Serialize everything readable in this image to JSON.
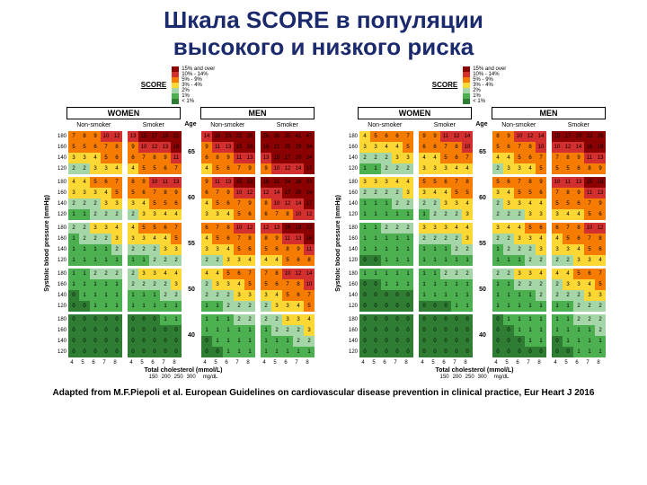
{
  "title_line1": "Шкала SCORE в популяции",
  "title_line2": "высокого и низкого риска",
  "attribution": "Adapted from M.F.Piepoli et al. European Guidelines on cardiovascular disease prevention in clinical practice, Eur Heart J 2016",
  "legend_title": "SCORE",
  "legend_items": [
    {
      "color": "#8b0000",
      "label": "15% and over"
    },
    {
      "color": "#d32f2f",
      "label": "10% - 14%"
    },
    {
      "color": "#f57c00",
      "label": "5% - 9%"
    },
    {
      "color": "#fdd835",
      "label": "3% - 4%"
    },
    {
      "color": "#a5d6a7",
      "label": "2%"
    },
    {
      "color": "#4caf50",
      "label": "1%"
    },
    {
      "color": "#2e7d32",
      "label": "< 1%"
    }
  ],
  "colors": {
    "darkred": "#8b0000",
    "red": "#d32f2f",
    "orange": "#f57c00",
    "yellow": "#fdd835",
    "lgreen": "#a5d6a7",
    "green": "#4caf50",
    "dgreen": "#2e7d32"
  },
  "gender_headers": [
    "WOMEN",
    "MEN"
  ],
  "smoke_headers": [
    "Non-smoker",
    "Smoker",
    "Non-smoker",
    "Smoker"
  ],
  "age_label": "Age",
  "y_axis": "Systolic blood pressure (mmHg)",
  "x_axis": "Total cholesterol (mmol/L)",
  "x_ticks": [
    "4",
    "5",
    "6",
    "7",
    "8"
  ],
  "x_ticks_mg": [
    "150",
    "200",
    "250",
    "300"
  ],
  "x_unit_mg": "mg/dL",
  "y_ticks": [
    "180",
    "160",
    "140",
    "120"
  ],
  "ages": [
    "65",
    "60",
    "55",
    "50",
    "40"
  ],
  "high_risk": {
    "65": {
      "wns": [
        [
          7,
          8,
          9,
          10,
          12
        ],
        [
          5,
          5,
          6,
          7,
          8
        ],
        [
          3,
          3,
          4,
          5,
          6
        ],
        [
          2,
          2,
          3,
          3,
          4
        ]
      ],
      "ws": [
        [
          13,
          15,
          17,
          19,
          22
        ],
        [
          9,
          10,
          12,
          13,
          16
        ],
        [
          6,
          7,
          8,
          9,
          11
        ],
        [
          4,
          5,
          5,
          6,
          7
        ]
      ],
      "mns": [
        [
          14,
          16,
          19,
          22,
          26
        ],
        [
          9,
          11,
          13,
          15,
          16
        ],
        [
          6,
          8,
          9,
          11,
          13
        ],
        [
          4,
          5,
          6,
          7,
          9
        ]
      ],
      "ms": [
        [
          26,
          30,
          35,
          41,
          47
        ],
        [
          18,
          21,
          25,
          29,
          34
        ],
        [
          13,
          15,
          17,
          20,
          24
        ],
        [
          9,
          10,
          12,
          14,
          17
        ]
      ]
    },
    "60": {
      "wns": [
        [
          4,
          4,
          5,
          6,
          7
        ],
        [
          3,
          3,
          3,
          4,
          5
        ],
        [
          2,
          2,
          2,
          3,
          3
        ],
        [
          1,
          1,
          2,
          2,
          2
        ]
      ],
      "ws": [
        [
          8,
          9,
          10,
          11,
          13
        ],
        [
          5,
          6,
          7,
          8,
          9
        ],
        [
          3,
          4,
          5,
          5,
          6
        ],
        [
          2,
          3,
          3,
          4,
          4
        ]
      ],
      "mns": [
        [
          9,
          11,
          13,
          15,
          18
        ],
        [
          6,
          7,
          9,
          10,
          12
        ],
        [
          4,
          5,
          6,
          7,
          9
        ],
        [
          3,
          3,
          4,
          5,
          6
        ]
      ],
      "ms": [
        [
          18,
          21,
          24,
          28,
          33
        ],
        [
          12,
          14,
          17,
          20,
          24
        ],
        [
          8,
          10,
          12,
          14,
          17
        ],
        [
          6,
          7,
          8,
          10,
          12
        ]
      ]
    },
    "55": {
      "wns": [
        [
          2,
          2,
          3,
          3,
          4
        ],
        [
          1,
          2,
          2,
          2,
          3
        ],
        [
          1,
          1,
          1,
          1,
          2
        ],
        [
          1,
          1,
          1,
          1,
          1
        ]
      ],
      "ws": [
        [
          4,
          5,
          5,
          6,
          7
        ],
        [
          3,
          3,
          4,
          4,
          5
        ],
        [
          2,
          2,
          2,
          3,
          3
        ],
        [
          1,
          1,
          2,
          2,
          2
        ]
      ],
      "mns": [
        [
          6,
          7,
          8,
          10,
          12
        ],
        [
          4,
          5,
          6,
          7,
          8
        ],
        [
          3,
          3,
          4,
          5,
          6
        ],
        [
          2,
          2,
          3,
          3,
          4
        ]
      ],
      "ms": [
        [
          12,
          13,
          16,
          19,
          22
        ],
        [
          8,
          9,
          11,
          13,
          16
        ],
        [
          5,
          6,
          8,
          9,
          11
        ],
        [
          4,
          4,
          5,
          6,
          8
        ]
      ]
    },
    "50": {
      "wns": [
        [
          1,
          1,
          2,
          2,
          2
        ],
        [
          1,
          1,
          1,
          1,
          1
        ],
        [
          0,
          1,
          1,
          1,
          1
        ],
        [
          0,
          0,
          1,
          1,
          1
        ]
      ],
      "ws": [
        [
          2,
          3,
          3,
          4,
          4
        ],
        [
          2,
          2,
          2,
          2,
          3
        ],
        [
          1,
          1,
          1,
          2,
          2
        ],
        [
          1,
          1,
          1,
          1,
          1
        ]
      ],
      "mns": [
        [
          4,
          4,
          5,
          6,
          7
        ],
        [
          2,
          3,
          3,
          4,
          5
        ],
        [
          2,
          2,
          2,
          3,
          3
        ],
        [
          1,
          1,
          2,
          2,
          2
        ]
      ],
      "ms": [
        [
          7,
          8,
          10,
          12,
          14
        ],
        [
          5,
          6,
          7,
          8,
          10
        ],
        [
          3,
          4,
          5,
          6,
          7
        ],
        [
          2,
          3,
          3,
          4,
          5
        ]
      ]
    },
    "40": {
      "wns": [
        [
          0,
          0,
          0,
          0,
          0
        ],
        [
          0,
          0,
          0,
          0,
          0
        ],
        [
          0,
          0,
          0,
          0,
          0
        ],
        [
          0,
          0,
          0,
          0,
          0
        ]
      ],
      "ws": [
        [
          0,
          0,
          0,
          1,
          1
        ],
        [
          0,
          0,
          0,
          0,
          0
        ],
        [
          0,
          0,
          0,
          0,
          0
        ],
        [
          0,
          0,
          0,
          0,
          0
        ]
      ],
      "mns": [
        [
          1,
          1,
          1,
          2,
          2
        ],
        [
          1,
          1,
          1,
          1,
          1
        ],
        [
          0,
          1,
          1,
          1,
          1
        ],
        [
          0,
          0,
          1,
          1,
          1
        ]
      ],
      "ms": [
        [
          2,
          2,
          3,
          3,
          4
        ],
        [
          1,
          2,
          2,
          2,
          3
        ],
        [
          1,
          1,
          1,
          2,
          2
        ],
        [
          1,
          1,
          1,
          1,
          1
        ]
      ]
    }
  },
  "low_risk": {
    "65": {
      "wns": [
        [
          4,
          5,
          6,
          6,
          7
        ],
        [
          3,
          3,
          4,
          4,
          5
        ],
        [
          2,
          2,
          2,
          3,
          3
        ],
        [
          1,
          1,
          2,
          2,
          2
        ]
      ],
      "ws": [
        [
          9,
          9,
          11,
          12,
          14
        ],
        [
          6,
          6,
          7,
          8,
          10
        ],
        [
          4,
          4,
          5,
          6,
          7
        ],
        [
          3,
          3,
          3,
          4,
          4
        ]
      ],
      "mns": [
        [
          8,
          9,
          10,
          12,
          14
        ],
        [
          5,
          6,
          7,
          8,
          10
        ],
        [
          4,
          4,
          5,
          6,
          7
        ],
        [
          2,
          3,
          3,
          4,
          5
        ]
      ],
      "ms": [
        [
          15,
          17,
          20,
          23,
          26
        ],
        [
          10,
          12,
          14,
          16,
          19
        ],
        [
          7,
          8,
          9,
          11,
          13
        ],
        [
          5,
          5,
          6,
          8,
          9
        ]
      ]
    },
    "60": {
      "wns": [
        [
          3,
          3,
          3,
          4,
          4
        ],
        [
          2,
          2,
          2,
          2,
          3
        ],
        [
          1,
          1,
          1,
          2,
          2
        ],
        [
          1,
          1,
          1,
          1,
          1
        ]
      ],
      "ws": [
        [
          5,
          5,
          6,
          7,
          8
        ],
        [
          3,
          4,
          4,
          5,
          5
        ],
        [
          2,
          2,
          3,
          3,
          4
        ],
        [
          1,
          2,
          2,
          2,
          3
        ]
      ],
      "mns": [
        [
          5,
          6,
          7,
          8,
          9
        ],
        [
          3,
          4,
          5,
          5,
          6
        ],
        [
          2,
          3,
          3,
          4,
          4
        ],
        [
          2,
          2,
          2,
          3,
          3
        ]
      ],
      "ms": [
        [
          10,
          11,
          13,
          15,
          18
        ],
        [
          7,
          8,
          9,
          11,
          13
        ],
        [
          5,
          5,
          6,
          7,
          9
        ],
        [
          3,
          4,
          4,
          5,
          6
        ]
      ]
    },
    "55": {
      "wns": [
        [
          1,
          1,
          2,
          2,
          2
        ],
        [
          1,
          1,
          1,
          1,
          1
        ],
        [
          1,
          1,
          1,
          1,
          1
        ],
        [
          0,
          0,
          1,
          1,
          1
        ]
      ],
      "ws": [
        [
          3,
          3,
          3,
          4,
          4
        ],
        [
          2,
          2,
          2,
          2,
          3
        ],
        [
          1,
          1,
          1,
          2,
          2
        ],
        [
          1,
          1,
          1,
          1,
          1
        ]
      ],
      "mns": [
        [
          3,
          4,
          4,
          5,
          6
        ],
        [
          2,
          2,
          3,
          3,
          4
        ],
        [
          1,
          2,
          2,
          2,
          3
        ],
        [
          1,
          1,
          1,
          2,
          2
        ]
      ],
      "ms": [
        [
          6,
          7,
          8,
          10,
          12
        ],
        [
          4,
          5,
          6,
          7,
          8
        ],
        [
          3,
          3,
          4,
          5,
          6
        ],
        [
          2,
          2,
          3,
          3,
          4
        ]
      ]
    },
    "50": {
      "wns": [
        [
          1,
          1,
          1,
          1,
          1
        ],
        [
          0,
          0,
          1,
          1,
          1
        ],
        [
          0,
          0,
          0,
          0,
          0
        ],
        [
          0,
          0,
          0,
          0,
          0
        ]
      ],
      "ws": [
        [
          1,
          1,
          2,
          2,
          2
        ],
        [
          1,
          1,
          1,
          1,
          1
        ],
        [
          1,
          1,
          1,
          1,
          1
        ],
        [
          0,
          0,
          0,
          1,
          1
        ]
      ],
      "mns": [
        [
          2,
          2,
          3,
          3,
          4
        ],
        [
          1,
          1,
          2,
          2,
          2
        ],
        [
          1,
          1,
          1,
          1,
          2
        ],
        [
          1,
          1,
          1,
          1,
          1
        ]
      ],
      "ms": [
        [
          4,
          4,
          5,
          6,
          7
        ],
        [
          2,
          3,
          3,
          4,
          5
        ],
        [
          2,
          2,
          2,
          3,
          3
        ],
        [
          1,
          1,
          2,
          2,
          2
        ]
      ]
    },
    "40": {
      "wns": [
        [
          0,
          0,
          0,
          0,
          0
        ],
        [
          0,
          0,
          0,
          0,
          0
        ],
        [
          0,
          0,
          0,
          0,
          0
        ],
        [
          0,
          0,
          0,
          0,
          0
        ]
      ],
      "ws": [
        [
          0,
          0,
          0,
          0,
          0
        ],
        [
          0,
          0,
          0,
          0,
          0
        ],
        [
          0,
          0,
          0,
          0,
          0
        ],
        [
          0,
          0,
          0,
          0,
          0
        ]
      ],
      "mns": [
        [
          0,
          1,
          1,
          1,
          1
        ],
        [
          0,
          0,
          1,
          1,
          1
        ],
        [
          0,
          0,
          0,
          1,
          1
        ],
        [
          0,
          0,
          0,
          0,
          0
        ]
      ],
      "ms": [
        [
          1,
          1,
          2,
          2,
          2
        ],
        [
          1,
          1,
          1,
          1,
          2
        ],
        [
          0,
          1,
          1,
          1,
          1
        ],
        [
          0,
          0,
          1,
          1,
          1
        ]
      ]
    }
  }
}
